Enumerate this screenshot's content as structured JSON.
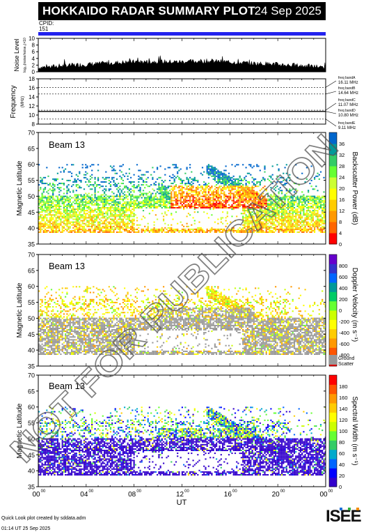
{
  "header": {
    "title": "HOKKAIDO RADAR SUMMARY PLOT",
    "date": "24 Sep 2025",
    "cpid_label": "CPID:",
    "cpid_value": "151"
  },
  "colors": {
    "cpid_bar": "#2222ee",
    "ground_scatter": "#999999",
    "title_bg": "#000000"
  },
  "chart_data": [
    {
      "type": "area",
      "name": "noise-level",
      "ylabel": "Noise Level",
      "ylabel_sub": "log₁₀(noise/noise₀)×10",
      "ylim": [
        0,
        10
      ],
      "y_ticks": [
        0,
        2,
        4,
        6,
        8,
        10
      ],
      "xlim": [
        0,
        24
      ],
      "x": [
        0,
        1,
        2,
        3,
        4,
        5,
        6,
        7,
        8,
        9,
        10,
        11,
        12,
        13,
        14,
        15,
        16,
        17,
        18,
        19,
        20,
        21,
        22,
        23,
        24
      ],
      "values": [
        1.3,
        1.5,
        1.8,
        2.0,
        2.2,
        2.4,
        2.6,
        2.8,
        3.0,
        3.0,
        3.1,
        3.0,
        3.0,
        3.1,
        3.2,
        3.1,
        2.9,
        2.7,
        2.5,
        2.4,
        2.2,
        2.0,
        1.8,
        1.6,
        1.4
      ]
    },
    {
      "type": "line",
      "name": "frequency",
      "ylabel": "Frequency",
      "yunit": "(MHz)",
      "ylim": [
        8,
        18
      ],
      "y_ticks": [
        8,
        10,
        12,
        14,
        16,
        18
      ],
      "bands": [
        {
          "label": "freq bandA",
          "value": "16.11 MHz",
          "mhz": 16.11
        },
        {
          "label": "freq bandB",
          "value": "14.64 MHz",
          "mhz": 14.64
        },
        {
          "label": "freq bandC",
          "value": "11.07 MHz",
          "mhz": 11.07
        },
        {
          "label": "freq bandD",
          "value": "10.80 MHz",
          "mhz": 10.8
        },
        {
          "label": "freq bandE",
          "value": "9.11 MHz",
          "mhz": 9.11
        }
      ],
      "data_mhz": 10.8
    },
    {
      "type": "heatmap",
      "name": "backscatter-power",
      "beam_label": "Beam 13",
      "ylabel": "Magnetic Latitude",
      "ylim": [
        35,
        70
      ],
      "y_ticks": [
        35,
        40,
        45,
        50,
        55,
        60,
        65,
        70
      ],
      "colorbar_label": "Backscatter Power (dB)",
      "colorbar_ticks": [
        0,
        4,
        8,
        12,
        16,
        20,
        24,
        28,
        32,
        36
      ],
      "colorbar_range": [
        0,
        40
      ],
      "colors": [
        "#ff0000",
        "#ff6600",
        "#ff9900",
        "#ffcc00",
        "#ffff00",
        "#ccff33",
        "#66ff33",
        "#33cc66",
        "#009999",
        "#0066cc"
      ]
    },
    {
      "type": "heatmap",
      "name": "doppler-velocity",
      "beam_label": "Beam 13",
      "ylabel": "Magnetic Latitude",
      "ylim": [
        35,
        70
      ],
      "y_ticks": [
        35,
        40,
        45,
        50,
        55,
        60,
        65,
        70
      ],
      "colorbar_label": "Doppler Velocity (m s⁻¹)",
      "colorbar_ticks": [
        -800,
        -600,
        -400,
        -200,
        0,
        200,
        400,
        600,
        800
      ],
      "colorbar_range": [
        -1000,
        1000
      ],
      "ground_scatter_label_1": "Ground",
      "ground_scatter_label_2": "Scatter",
      "colors": [
        "#ff0000",
        "#ff5500",
        "#ff9900",
        "#ffcc00",
        "#ffff00",
        "#ccff00",
        "#66ff33",
        "#00cc66",
        "#009999",
        "#0066ff",
        "#3333cc",
        "#6600cc"
      ]
    },
    {
      "type": "heatmap",
      "name": "spectral-width",
      "beam_label": "Beam 13",
      "ylabel": "Magnetic Latitude",
      "ylim": [
        35,
        70
      ],
      "y_ticks": [
        35,
        40,
        45,
        50,
        55,
        60,
        65,
        70
      ],
      "colorbar_label": "Spectral Width (m s⁻¹)",
      "colorbar_ticks": [
        0,
        20,
        40,
        60,
        80,
        100,
        120,
        140,
        160,
        180
      ],
      "colorbar_range": [
        0,
        200
      ],
      "colors": [
        "#3300cc",
        "#0000ff",
        "#0066ff",
        "#00aacc",
        "#33cc66",
        "#66ff33",
        "#ccff00",
        "#ffff00",
        "#ffcc00",
        "#ff9900",
        "#ff5500",
        "#ff0000"
      ]
    }
  ],
  "x_axis": {
    "xlabel": "UT",
    "xlim": [
      0,
      24
    ],
    "ticks": [
      {
        "hour": 0,
        "label": "00",
        "sup": "00"
      },
      {
        "hour": 4,
        "label": "04",
        "sup": "00"
      },
      {
        "hour": 8,
        "label": "08",
        "sup": "00"
      },
      {
        "hour": 12,
        "label": "12",
        "sup": "00"
      },
      {
        "hour": 16,
        "label": "16",
        "sup": "00"
      },
      {
        "hour": 20,
        "label": "20",
        "sup": "00"
      },
      {
        "hour": 24,
        "label": "00",
        "sup": "00"
      }
    ]
  },
  "watermark": "NOT FOR PUBLICATION",
  "footer": {
    "line1": "Quick Look plot created by sddata.adm",
    "line2": "01:14 UT 25 Sep 2025"
  },
  "logo_text": "ISEE"
}
